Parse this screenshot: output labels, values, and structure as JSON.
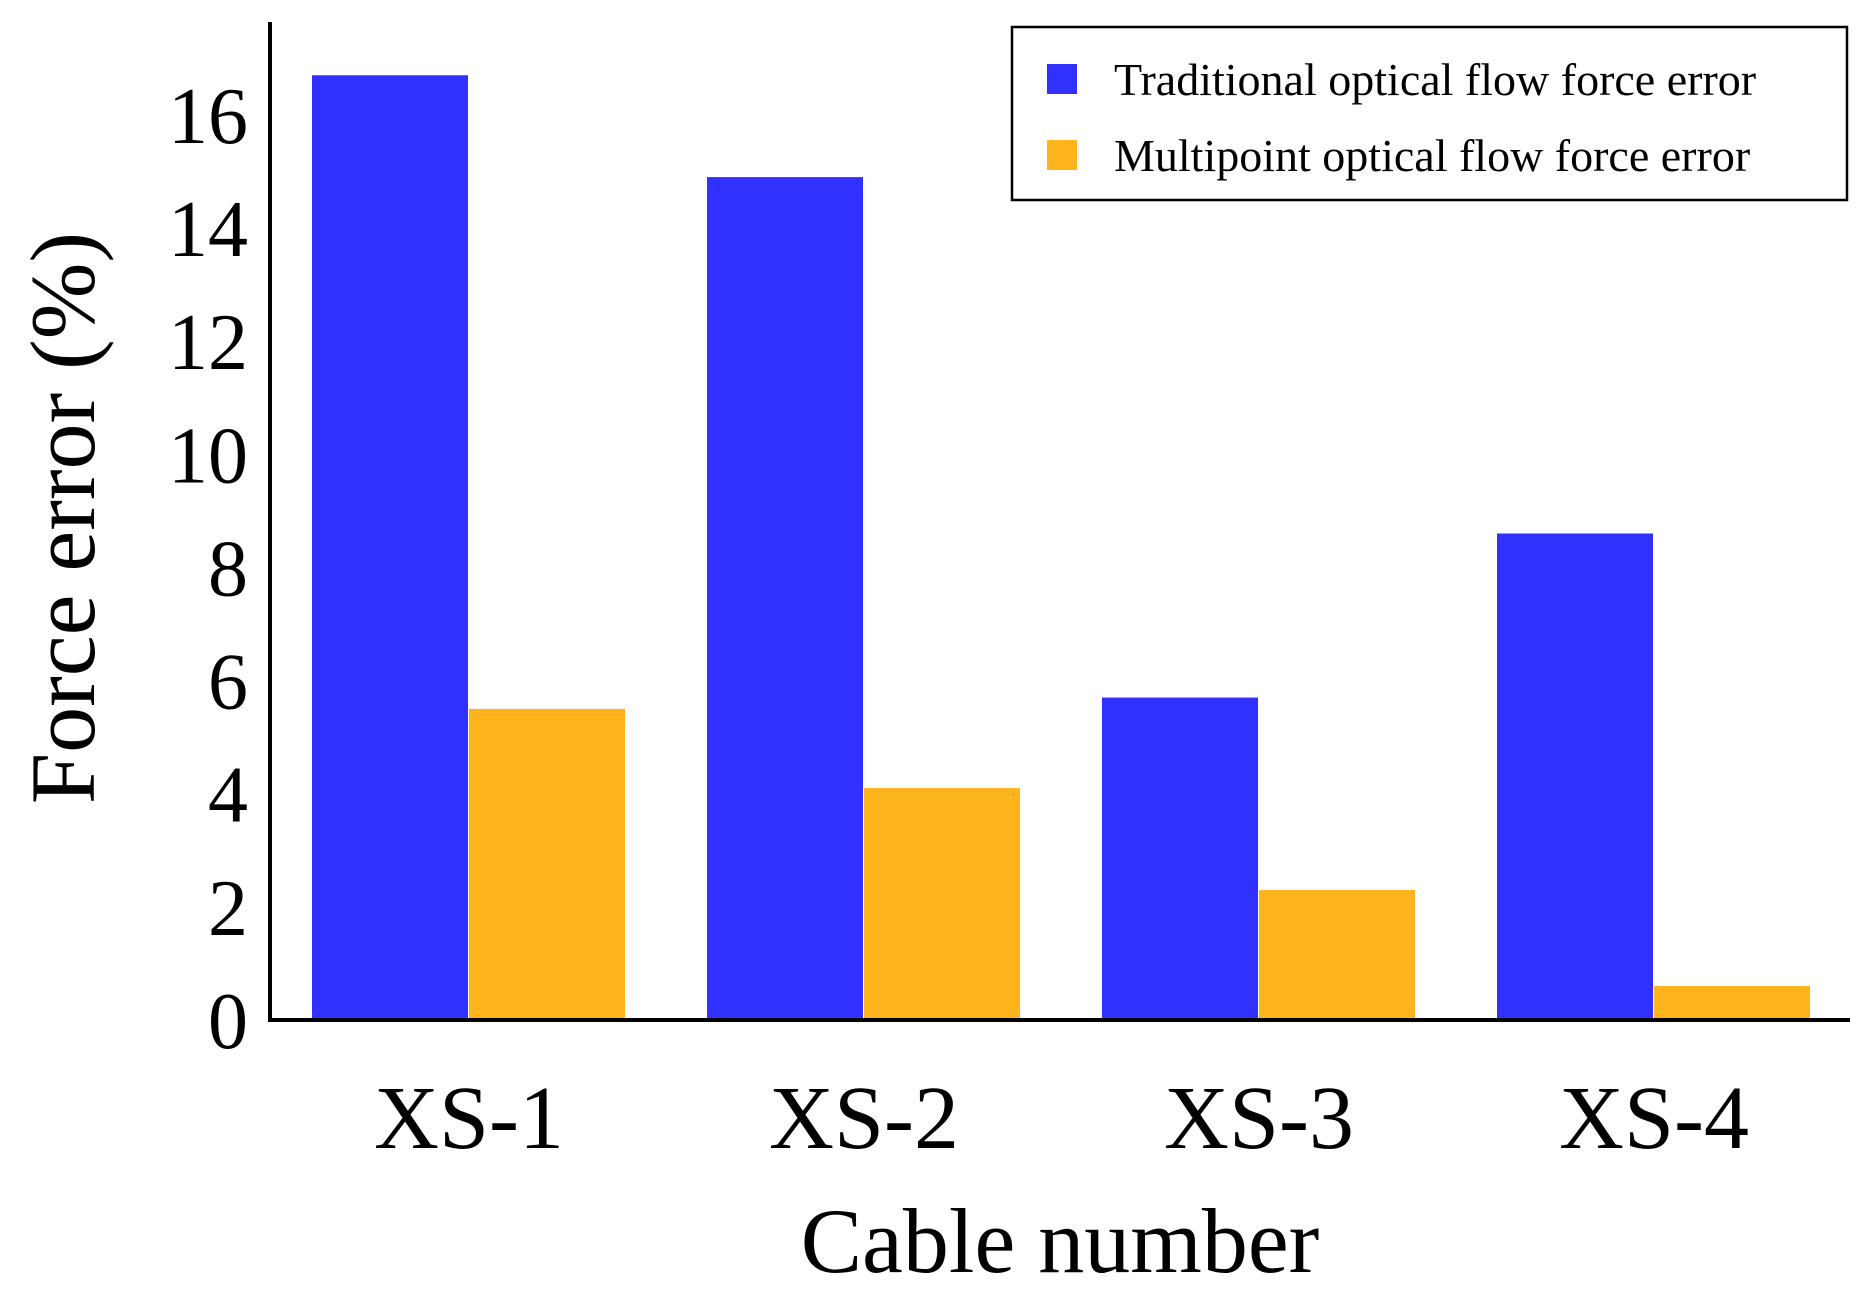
{
  "chart_data": {
    "type": "bar",
    "categories": [
      "XS-1",
      "XS-2",
      "XS-3",
      "XS-4"
    ],
    "series": [
      {
        "name": "Traditional optical flow force error",
        "color": "#3131ff",
        "values": [
          16.7,
          14.9,
          5.7,
          8.6
        ]
      },
      {
        "name": "Multipoint optical flow force error",
        "color": "#ffb31c",
        "values": [
          5.5,
          4.1,
          2.3,
          0.6
        ]
      }
    ],
    "xlabel": "Cable number",
    "ylabel": "Force error (%)",
    "ylim": [
      0,
      17.5
    ],
    "yticks": [
      "0",
      "2",
      "4",
      "6",
      "8",
      "10",
      "12",
      "14",
      "16"
    ],
    "grid": false,
    "legend_position": "top-right"
  }
}
